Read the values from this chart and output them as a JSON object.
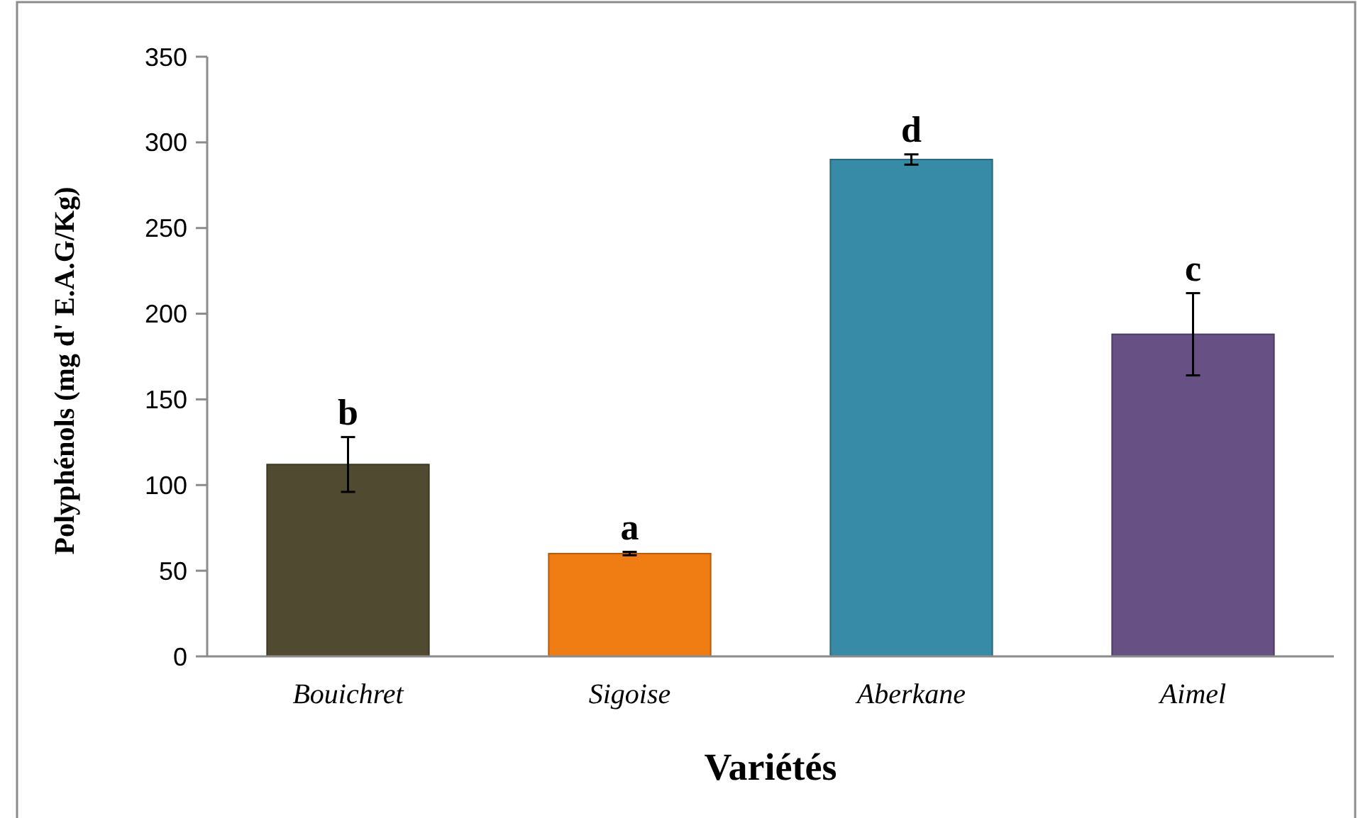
{
  "chart_data": {
    "type": "bar",
    "xlabel": "Variétés",
    "ylabel": "Polyphénols (mg d' E.A.G/Kg)",
    "categories": [
      "Bouichret",
      "Sigoise",
      "Aberkane",
      "Aimel"
    ],
    "values": [
      112,
      60,
      290,
      188
    ],
    "colors": [
      "#504a30",
      "#f07c14",
      "#388ba6",
      "#675184"
    ],
    "errors": [
      16,
      1,
      3,
      24
    ],
    "ylim": [
      0,
      350
    ],
    "yticks": [
      0,
      50,
      100,
      150,
      200,
      250,
      300,
      350
    ],
    "annotations": [
      "b",
      "a",
      "d",
      "c"
    ]
  }
}
